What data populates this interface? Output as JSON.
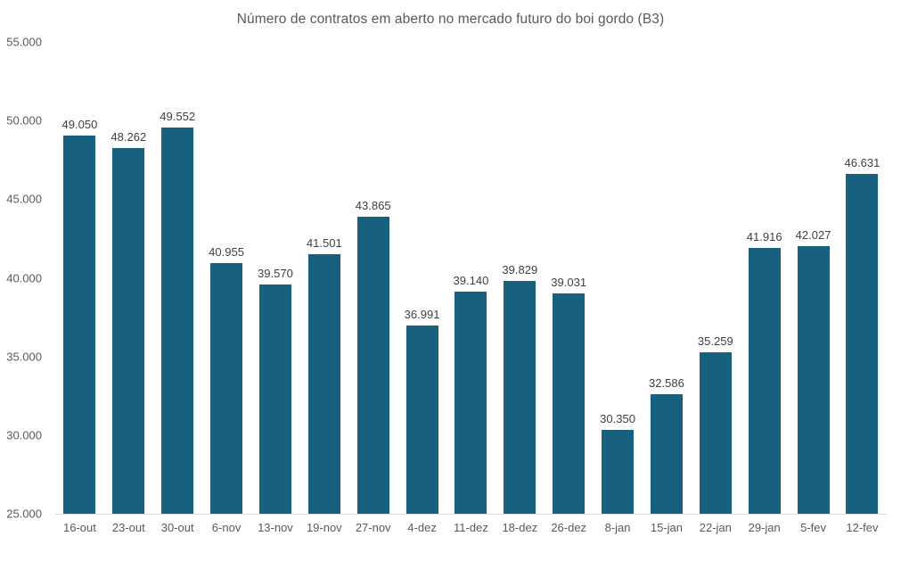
{
  "title": "Número de contratos em aberto no mercado futuro do boi gordo (B3)",
  "colors": {
    "bar": "#17617f",
    "title_text": "#595959",
    "axis_text": "#595959",
    "value_label_text": "#404040",
    "axis_line": "#d9d9d9",
    "background": "#ffffff"
  },
  "chart_data": {
    "type": "bar",
    "title": "Número de contratos em aberto no mercado futuro do boi gordo (B3)",
    "categories": [
      "16-out",
      "23-out",
      "30-out",
      "6-nov",
      "13-nov",
      "19-nov",
      "27-nov",
      "4-dez",
      "11-dez",
      "18-dez",
      "26-dez",
      "8-jan",
      "15-jan",
      "22-jan",
      "29-jan",
      "5-fev",
      "12-fev"
    ],
    "values": [
      49050,
      48262,
      49552,
      40955,
      39570,
      41501,
      43865,
      36991,
      39140,
      39829,
      39031,
      30350,
      32586,
      35259,
      41916,
      42027,
      46631
    ],
    "value_labels": [
      "49.050",
      "48.262",
      "49.552",
      "40.955",
      "39.570",
      "41.501",
      "43.865",
      "36.991",
      "39.140",
      "39.829",
      "39.031",
      "30.350",
      "32.586",
      "35.259",
      "41.916",
      "42.027",
      "46.631"
    ],
    "xlabel": "",
    "ylabel": "",
    "ylim": [
      25000,
      55000
    ],
    "y_ticks": [
      55000,
      50000,
      45000,
      40000,
      35000,
      30000,
      25000
    ],
    "y_tick_labels": [
      "55.000",
      "50.000",
      "45.000",
      "40.000",
      "35.000",
      "30.000",
      "25.000"
    ],
    "grid": false,
    "legend_position": "none",
    "bar_color": "#17617f"
  }
}
